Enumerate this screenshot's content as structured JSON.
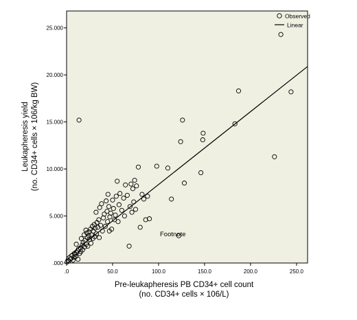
{
  "chart_data": {
    "type": "scatter",
    "xlabel_line1": "Pre-leukapheresis PB CD34+ cell count",
    "xlabel_line2": "(no. CD34+ cells × 106/L)",
    "ylabel_line1": "Leukapheresis yield",
    "ylabel_line2": "(no. CD34+ cells × 106/kg BW)",
    "xlim": [
      0,
      262
    ],
    "ylim": [
      0,
      26.8
    ],
    "xticks": [
      0,
      50,
      100,
      150,
      200,
      250
    ],
    "xtick_labels": [
      ".0",
      "50.0",
      "100.0",
      "150.0",
      "200.0",
      "250.0"
    ],
    "yticks": [
      0,
      5,
      10,
      15,
      20,
      25
    ],
    "ytick_labels": [
      ".000",
      "5.000",
      "10.000",
      "15.000",
      "20.000",
      "25.000"
    ],
    "grid": false,
    "legend_position": "top-right",
    "legend": {
      "observed": "Observed",
      "linear": "Linear"
    },
    "annotation": "Footnote",
    "colors": {
      "plot_background": "#efefe2",
      "points": "#000000",
      "fit_line": "#000000"
    },
    "fit_line": {
      "x": [
        0,
        262
      ],
      "y": [
        0.6,
        20.9
      ]
    },
    "observed": [
      [
        0.5,
        0.1
      ],
      [
        1.5,
        0.3
      ],
      [
        2.0,
        0.2
      ],
      [
        4.0,
        0.4
      ],
      [
        5.0,
        0.5
      ],
      [
        6.0,
        0.8
      ],
      [
        7.0,
        0.3
      ],
      [
        8.0,
        0.6
      ],
      [
        8.5,
        1.0
      ],
      [
        9.0,
        0.9
      ],
      [
        10.0,
        0.7
      ],
      [
        10.5,
        2.0
      ],
      [
        11.0,
        1.1
      ],
      [
        12.0,
        1.3
      ],
      [
        12.5,
        0.4
      ],
      [
        13.0,
        1.5
      ],
      [
        13.5,
        15.2
      ],
      [
        14.0,
        1.0
      ],
      [
        15.0,
        1.6
      ],
      [
        15.5,
        1.2
      ],
      [
        16.0,
        2.6
      ],
      [
        17.0,
        1.9
      ],
      [
        17.5,
        1.4
      ],
      [
        18.0,
        2.2
      ],
      [
        19.0,
        3.0
      ],
      [
        19.5,
        1.7
      ],
      [
        20.0,
        2.4
      ],
      [
        21.0,
        3.5
      ],
      [
        21.5,
        2.0
      ],
      [
        22.0,
        3.2
      ],
      [
        22.5,
        2.7
      ],
      [
        23.0,
        1.8
      ],
      [
        24.0,
        2.9
      ],
      [
        24.5,
        3.3
      ],
      [
        25.0,
        2.5
      ],
      [
        26.0,
        3.6
      ],
      [
        26.5,
        2.1
      ],
      [
        27.0,
        3.0
      ],
      [
        28.0,
        3.9
      ],
      [
        28.5,
        2.6
      ],
      [
        29.0,
        3.4
      ],
      [
        30.0,
        4.1
      ],
      [
        30.5,
        2.8
      ],
      [
        31.0,
        3.7
      ],
      [
        32.0,
        5.4
      ],
      [
        32.5,
        3.1
      ],
      [
        33.0,
        4.3
      ],
      [
        34.0,
        3.8
      ],
      [
        35.0,
        4.6
      ],
      [
        35.5,
        2.7
      ],
      [
        36.0,
        5.9
      ],
      [
        37.0,
        4.0
      ],
      [
        38.0,
        6.3
      ],
      [
        39.0,
        3.4
      ],
      [
        40.0,
        4.8
      ],
      [
        41.0,
        5.2
      ],
      [
        42.0,
        3.9
      ],
      [
        43.0,
        6.6
      ],
      [
        44.0,
        5.5
      ],
      [
        44.5,
        4.4
      ],
      [
        45.0,
        7.3
      ],
      [
        46.0,
        6.0
      ],
      [
        46.5,
        3.4
      ],
      [
        47.0,
        4.9
      ],
      [
        48.0,
        5.3
      ],
      [
        49.0,
        3.6
      ],
      [
        50.0,
        6.7
      ],
      [
        51.0,
        5.8
      ],
      [
        52.0,
        4.6
      ],
      [
        53.0,
        5.1
      ],
      [
        54.0,
        7.1
      ],
      [
        55.0,
        8.7
      ],
      [
        56.0,
        4.4
      ],
      [
        57.0,
        6.2
      ],
      [
        58.0,
        7.4
      ],
      [
        60.0,
        5.6
      ],
      [
        62.0,
        6.9
      ],
      [
        63.0,
        5.0
      ],
      [
        64.0,
        8.3
      ],
      [
        66.0,
        7.2
      ],
      [
        68.0,
        1.8
      ],
      [
        69.0,
        6.0
      ],
      [
        70.0,
        8.4
      ],
      [
        71.0,
        5.4
      ],
      [
        72.0,
        7.9
      ],
      [
        73.0,
        6.5
      ],
      [
        74.0,
        8.8
      ],
      [
        75.0,
        5.7
      ],
      [
        76.0,
        8.2
      ],
      [
        78.0,
        10.2
      ],
      [
        80.0,
        3.8
      ],
      [
        82.0,
        7.3
      ],
      [
        84.0,
        6.8
      ],
      [
        86.0,
        4.6
      ],
      [
        88.0,
        7.1
      ],
      [
        90.0,
        4.7
      ],
      [
        98.0,
        10.3
      ],
      [
        110.0,
        10.1
      ],
      [
        114.0,
        6.8
      ],
      [
        122.0,
        2.9
      ],
      [
        124.0,
        12.9
      ],
      [
        126.0,
        15.2
      ],
      [
        128.0,
        8.5
      ],
      [
        146.0,
        9.6
      ],
      [
        148.0,
        13.1
      ],
      [
        148.5,
        13.8
      ],
      [
        183.0,
        14.8
      ],
      [
        187.0,
        18.3
      ],
      [
        226.0,
        11.3
      ],
      [
        233.0,
        24.3
      ],
      [
        244.0,
        18.2
      ]
    ]
  }
}
